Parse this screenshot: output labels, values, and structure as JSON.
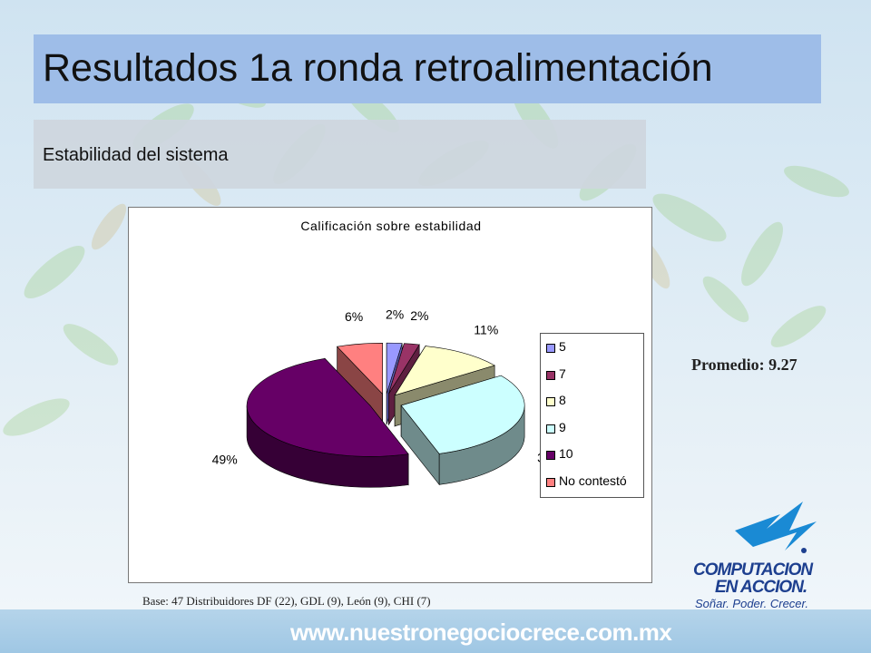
{
  "slide": {
    "title": "Resultados 1a ronda retroalimentación",
    "subtitle": "Estabilidad del sistema",
    "promedio": "Promedio: 9.27",
    "base_note": "Base: 47 Distribuidores DF (22), GDL (9), León (9), CHI (7)",
    "footer_url": "www.nuestronegociocrece.com.mx",
    "logo": {
      "line1": "COMPUTACION",
      "line2": "EN ACCION.",
      "tagline": "Soñar. Poder. Crecer."
    }
  },
  "chart_data": {
    "type": "pie",
    "title": "Calificación sobre estabilidad",
    "three_d": true,
    "legend_position": "right",
    "slices": [
      {
        "label": "5",
        "value": 2,
        "display": "2%",
        "color": "#9999ff",
        "side_color": "#5c5cb0"
      },
      {
        "label": "7",
        "value": 2,
        "display": "2%",
        "color": "#993366",
        "side_color": "#5e1f40"
      },
      {
        "label": "8",
        "value": 11,
        "display": "11%",
        "color": "#ffffcc",
        "side_color": "#8a8a6c"
      },
      {
        "label": "9",
        "value": 30,
        "display": "30%",
        "color": "#ccffff",
        "side_color": "#6f8b8b"
      },
      {
        "label": "10",
        "value": 49,
        "display": "49%",
        "color": "#660066",
        "side_color": "#360036"
      },
      {
        "label": "No contestó",
        "value": 6,
        "display": "6%",
        "color": "#ff8080",
        "side_color": "#8a4545"
      }
    ]
  }
}
